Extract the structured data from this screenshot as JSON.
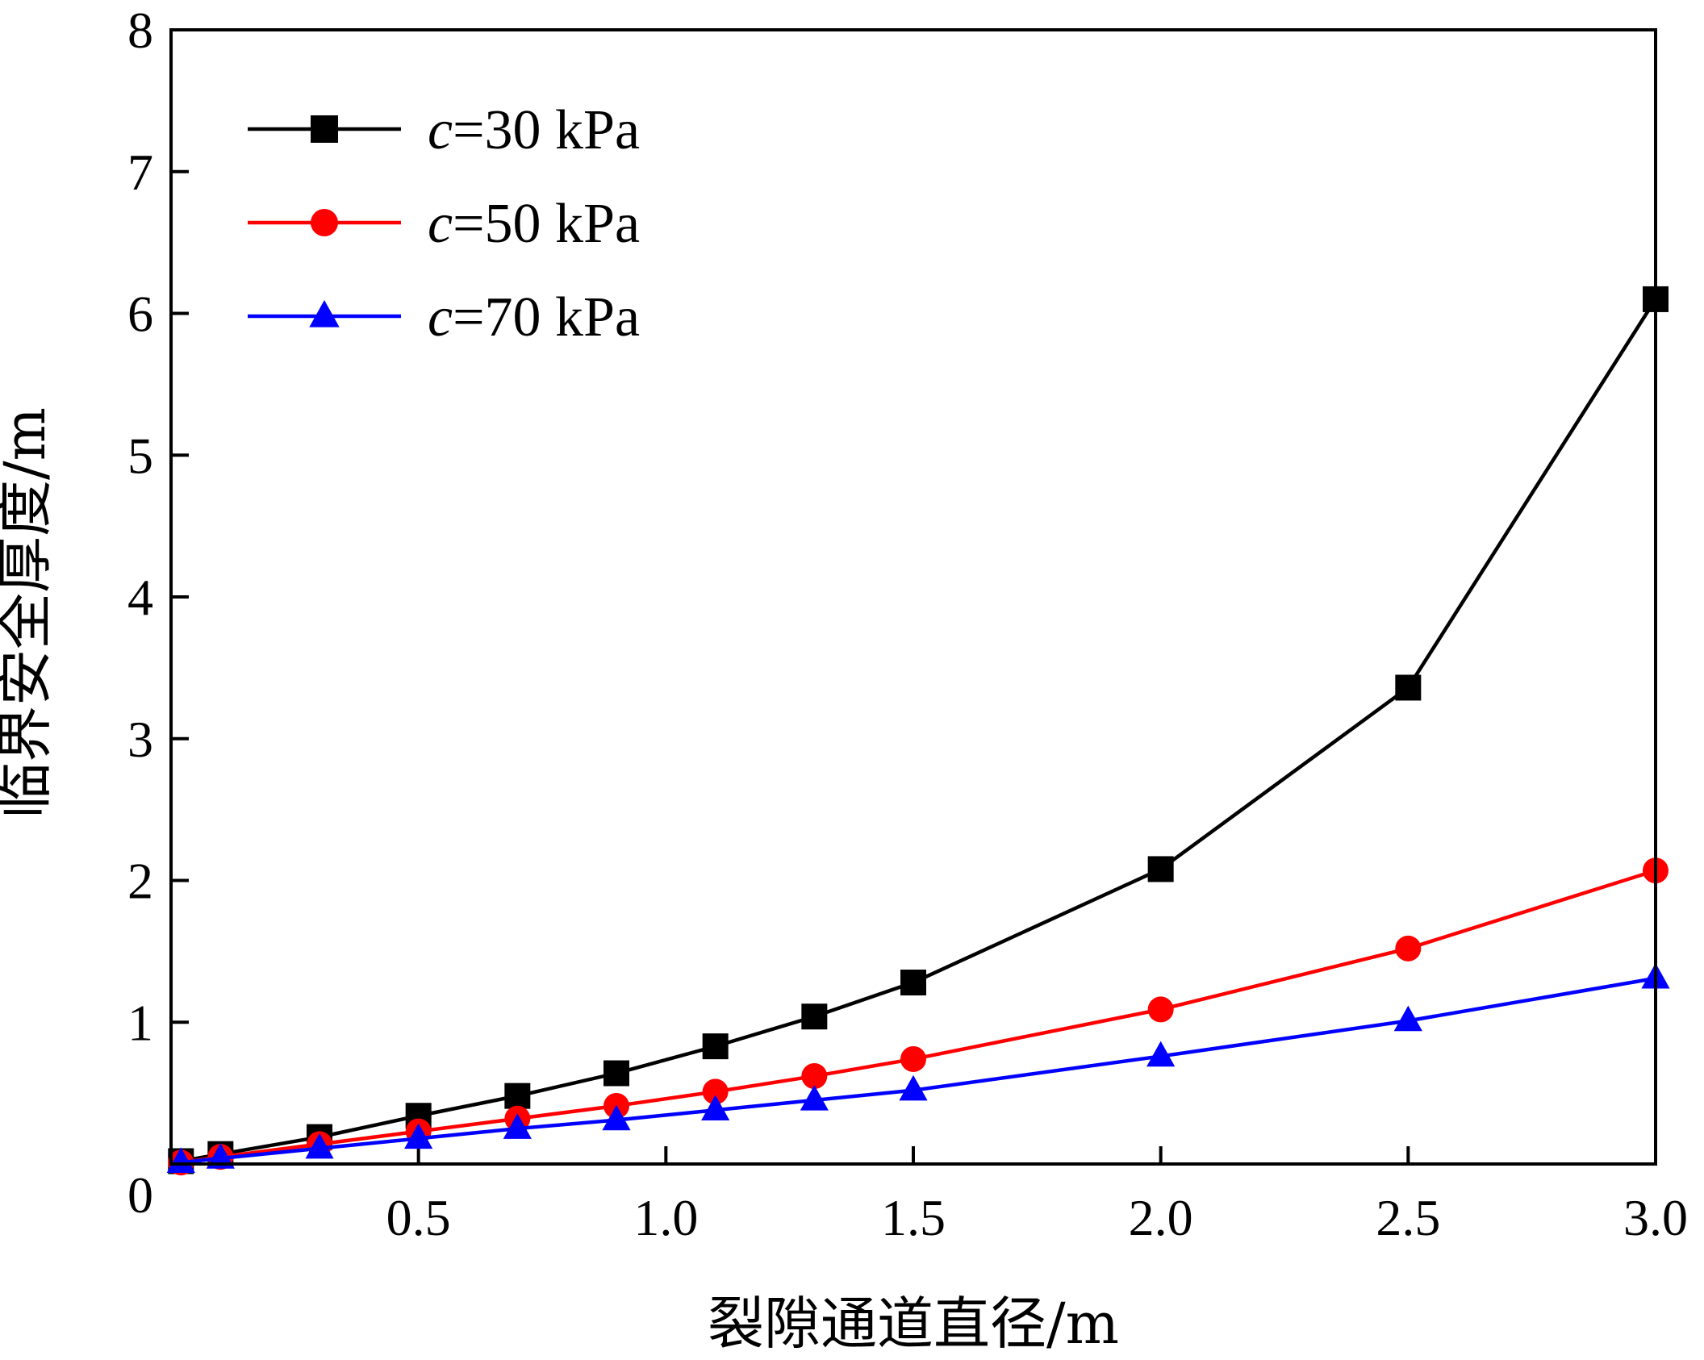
{
  "chart_data": {
    "type": "line",
    "xlabel": "裂隙通道直径/m",
    "ylabel": "临界安全厚度/m",
    "xlim": [
      0,
      3.0
    ],
    "ylim": [
      0,
      8
    ],
    "x_ticks": [
      "0.5",
      "1.0",
      "1.5",
      "2.0",
      "2.5",
      "3.0"
    ],
    "x_tick_values": [
      0.5,
      1.0,
      1.5,
      2.0,
      2.5,
      3.0
    ],
    "y_ticks": [
      "1",
      "2",
      "3",
      "4",
      "5",
      "6",
      "7",
      "8"
    ],
    "y_tick_values": [
      1,
      2,
      3,
      4,
      5,
      6,
      7,
      8
    ],
    "origin_label": "0",
    "grid": false,
    "legend_position": "top-left",
    "x": [
      0.02,
      0.1,
      0.3,
      0.5,
      0.7,
      0.9,
      1.1,
      1.3,
      1.5,
      2.0,
      2.5,
      3.0
    ],
    "series": [
      {
        "name": "c=30 kPa",
        "legend_var": "c",
        "legend_rest": "=30 kPa",
        "color": "#000000",
        "marker": "square",
        "values": [
          0.02,
          0.07,
          0.19,
          0.34,
          0.48,
          0.64,
          0.83,
          1.04,
          1.28,
          2.08,
          3.36,
          6.1
        ]
      },
      {
        "name": "c=50 kPa",
        "legend_var": "c",
        "legend_rest": "=50 kPa",
        "color": "#ff0000",
        "marker": "circle",
        "values": [
          0.01,
          0.05,
          0.14,
          0.23,
          0.32,
          0.41,
          0.51,
          0.62,
          0.74,
          1.09,
          1.52,
          2.07
        ]
      },
      {
        "name": "c=70 kPa",
        "legend_var": "c",
        "legend_rest": "=70 kPa",
        "color": "#0000ff",
        "marker": "triangle",
        "values": [
          0.01,
          0.04,
          0.11,
          0.18,
          0.25,
          0.31,
          0.38,
          0.45,
          0.52,
          0.76,
          1.01,
          1.31
        ]
      }
    ]
  }
}
